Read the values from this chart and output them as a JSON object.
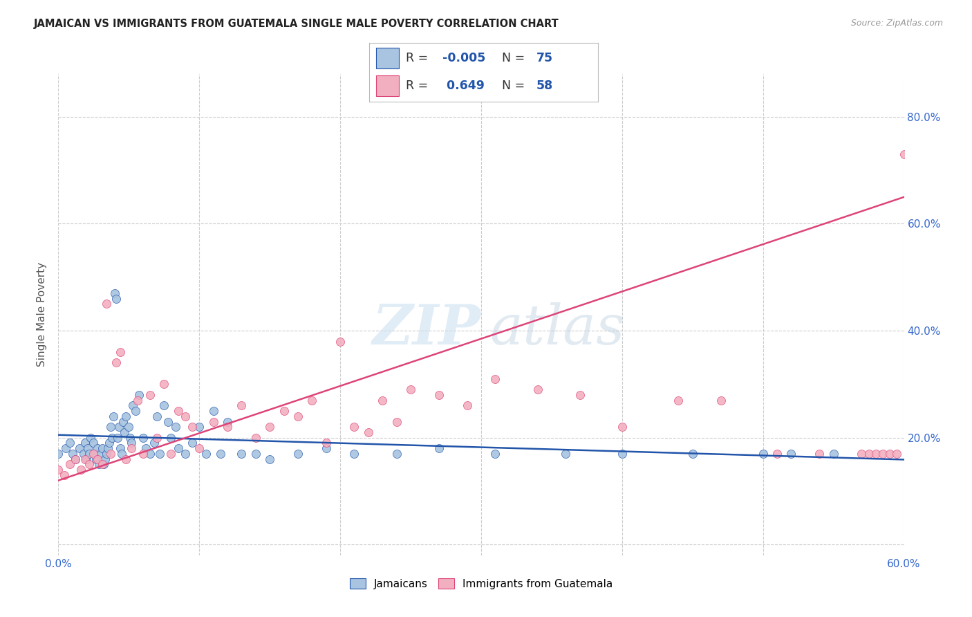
{
  "title": "JAMAICAN VS IMMIGRANTS FROM GUATEMALA SINGLE MALE POVERTY CORRELATION CHART",
  "source": "Source: ZipAtlas.com",
  "ylabel": "Single Male Poverty",
  "xlim": [
    0.0,
    0.6
  ],
  "ylim": [
    -0.02,
    0.88
  ],
  "x_ticks": [
    0.0,
    0.1,
    0.2,
    0.3,
    0.4,
    0.5,
    0.6
  ],
  "x_tick_labels": [
    "0.0%",
    "",
    "",
    "",
    "",
    "",
    "60.0%"
  ],
  "y_ticks": [
    0.0,
    0.2,
    0.4,
    0.6,
    0.8
  ],
  "y_tick_labels_right": [
    "",
    "20.0%",
    "40.0%",
    "60.0%",
    "80.0%"
  ],
  "color_blue": "#a8c4e0",
  "color_pink": "#f2afc0",
  "line_blue": "#2255aa",
  "line_pink": "#dd4477",
  "grid_color": "#cccccc",
  "jamaicans_x": [
    0.0,
    0.005,
    0.008,
    0.01,
    0.012,
    0.015,
    0.018,
    0.019,
    0.02,
    0.021,
    0.022,
    0.023,
    0.025,
    0.026,
    0.027,
    0.028,
    0.029,
    0.03,
    0.031,
    0.032,
    0.033,
    0.034,
    0.035,
    0.036,
    0.037,
    0.038,
    0.039,
    0.04,
    0.041,
    0.042,
    0.043,
    0.044,
    0.045,
    0.046,
    0.047,
    0.048,
    0.05,
    0.051,
    0.052,
    0.053,
    0.055,
    0.057,
    0.06,
    0.062,
    0.065,
    0.068,
    0.07,
    0.072,
    0.075,
    0.078,
    0.08,
    0.083,
    0.085,
    0.09,
    0.095,
    0.1,
    0.105,
    0.11,
    0.115,
    0.12,
    0.13,
    0.14,
    0.15,
    0.17,
    0.19,
    0.21,
    0.24,
    0.27,
    0.31,
    0.36,
    0.4,
    0.45,
    0.5,
    0.52,
    0.55
  ],
  "jamaicans_y": [
    0.17,
    0.18,
    0.19,
    0.17,
    0.16,
    0.18,
    0.17,
    0.19,
    0.16,
    0.18,
    0.17,
    0.2,
    0.19,
    0.17,
    0.16,
    0.18,
    0.15,
    0.17,
    0.18,
    0.15,
    0.16,
    0.17,
    0.18,
    0.19,
    0.22,
    0.2,
    0.24,
    0.47,
    0.46,
    0.2,
    0.22,
    0.18,
    0.17,
    0.23,
    0.21,
    0.24,
    0.22,
    0.2,
    0.19,
    0.26,
    0.25,
    0.28,
    0.2,
    0.18,
    0.17,
    0.19,
    0.24,
    0.17,
    0.26,
    0.23,
    0.2,
    0.22,
    0.18,
    0.17,
    0.19,
    0.22,
    0.17,
    0.25,
    0.17,
    0.23,
    0.17,
    0.17,
    0.16,
    0.17,
    0.18,
    0.17,
    0.17,
    0.18,
    0.17,
    0.17,
    0.17,
    0.17,
    0.17,
    0.17,
    0.17
  ],
  "guatemala_x": [
    0.0,
    0.004,
    0.008,
    0.012,
    0.016,
    0.019,
    0.022,
    0.025,
    0.028,
    0.031,
    0.034,
    0.037,
    0.041,
    0.044,
    0.048,
    0.052,
    0.056,
    0.06,
    0.065,
    0.07,
    0.075,
    0.08,
    0.085,
    0.09,
    0.095,
    0.1,
    0.11,
    0.12,
    0.13,
    0.14,
    0.15,
    0.16,
    0.17,
    0.18,
    0.19,
    0.2,
    0.21,
    0.22,
    0.23,
    0.24,
    0.25,
    0.27,
    0.29,
    0.31,
    0.34,
    0.37,
    0.4,
    0.44,
    0.47,
    0.51,
    0.54,
    0.57,
    0.575,
    0.58,
    0.585,
    0.59,
    0.595,
    0.6
  ],
  "guatemala_y": [
    0.14,
    0.13,
    0.15,
    0.16,
    0.14,
    0.16,
    0.15,
    0.17,
    0.16,
    0.15,
    0.45,
    0.17,
    0.34,
    0.36,
    0.16,
    0.18,
    0.27,
    0.17,
    0.28,
    0.2,
    0.3,
    0.17,
    0.25,
    0.24,
    0.22,
    0.18,
    0.23,
    0.22,
    0.26,
    0.2,
    0.22,
    0.25,
    0.24,
    0.27,
    0.19,
    0.38,
    0.22,
    0.21,
    0.27,
    0.23,
    0.29,
    0.28,
    0.26,
    0.31,
    0.29,
    0.28,
    0.22,
    0.27,
    0.27,
    0.17,
    0.17,
    0.17,
    0.17,
    0.17,
    0.17,
    0.17,
    0.17,
    0.73
  ]
}
